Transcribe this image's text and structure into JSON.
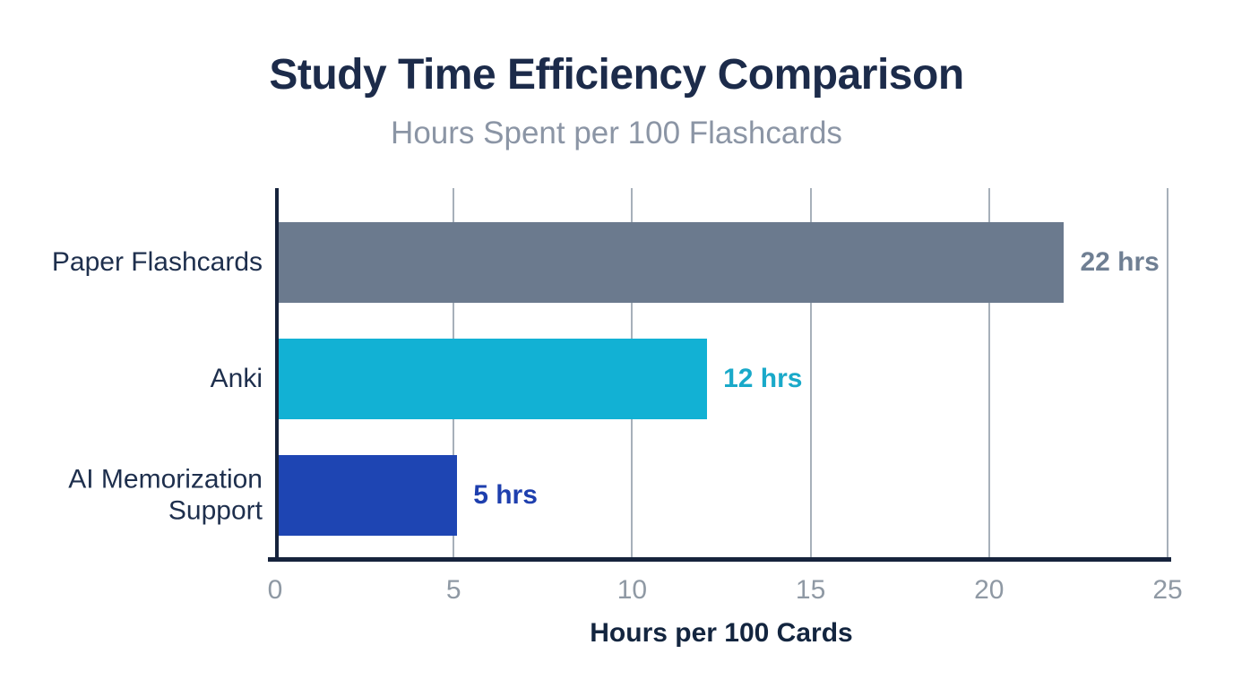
{
  "chart_data": {
    "type": "bar",
    "orientation": "horizontal",
    "title": "Study Time Efficiency Comparison",
    "subtitle": "Hours Spent per 100 Flashcards",
    "xlabel": "Hours per 100 Cards",
    "categories": [
      "Paper Flashcards",
      "Anki",
      "AI Memorization Support"
    ],
    "values": [
      22,
      12,
      5
    ],
    "value_labels": [
      "22 hrs",
      "12 hrs",
      "5 hrs"
    ],
    "bar_colors": [
      "#6b7a8e",
      "#12b1d4",
      "#1e45b3"
    ],
    "value_label_colors": [
      "#6f7f93",
      "#19a9c9",
      "#1e3fae"
    ],
    "xlim": [
      0,
      25
    ],
    "xticks": [
      0,
      5,
      10,
      15,
      20,
      25
    ],
    "grid": "vertical-gridlines",
    "legend": "none"
  },
  "style": {
    "title_color": "#1c2b4a",
    "subtitle_color": "#8b95a5",
    "category_label_color": "#1e2f4d",
    "axis_line_color": "#16233c",
    "gridline_color": "#a7b0ba",
    "tick_label_color": "#8f99a4",
    "axis_title_color": "#13253f",
    "background_color": "#ffffff"
  }
}
